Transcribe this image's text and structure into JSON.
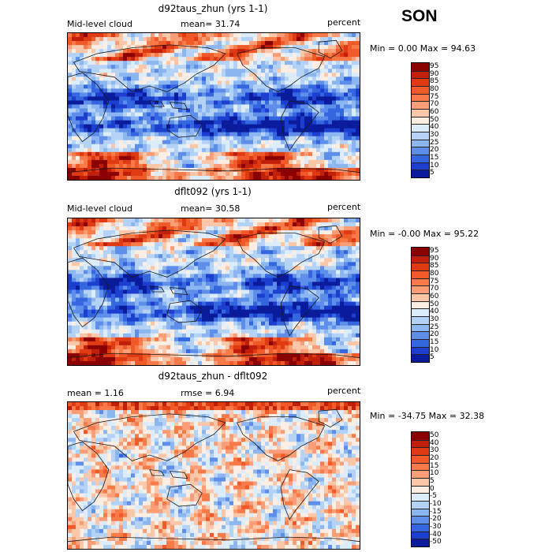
{
  "season": "SON",
  "panels": [
    {
      "title": "d92taus_zhun (yrs 1-1)",
      "left_label": "Mid-level cloud",
      "mid_label": "mean=  31.74",
      "right_label": "percent",
      "minmax": "Min =    0.00 Max =  94.63",
      "levels": [
        "95",
        "90",
        "85",
        "80",
        "75",
        "70",
        "60",
        "50",
        "40",
        "30",
        "25",
        "20",
        "15",
        "10",
        "5"
      ],
      "colors": [
        "#8b0000",
        "#c0200a",
        "#e03a12",
        "#f05a28",
        "#f77a48",
        "#fb9e78",
        "#fcc6a8",
        "#fdeee4",
        "#dcecfb",
        "#b4d2f6",
        "#8cb6f0",
        "#5e8eea",
        "#3466e0",
        "#1c3fd0",
        "#0a1c9c"
      ],
      "kind": "a"
    },
    {
      "title": "dflt092 (yrs 1-1)",
      "left_label": "Mid-level cloud",
      "mid_label": "mean=  30.58",
      "right_label": "percent",
      "minmax": "Min =   -0.00 Max =  95.22",
      "levels": [
        "95",
        "90",
        "85",
        "80",
        "75",
        "70",
        "60",
        "50",
        "40",
        "30",
        "25",
        "20",
        "15",
        "10",
        "5"
      ],
      "colors": [
        "#8b0000",
        "#c0200a",
        "#e03a12",
        "#f05a28",
        "#f77a48",
        "#fb9e78",
        "#fcc6a8",
        "#fdeee4",
        "#dcecfb",
        "#b4d2f6",
        "#8cb6f0",
        "#5e8eea",
        "#3466e0",
        "#1c3fd0",
        "#0a1c9c"
      ],
      "kind": "b"
    },
    {
      "title": "d92taus_zhun - dflt092",
      "left_label": "mean =    1.16",
      "mid_label": "rmse =    6.94",
      "right_label": "percent",
      "minmax": "Min = -34.75 Max =  32.38",
      "levels": [
        "50",
        "40",
        "30",
        "20",
        "15",
        "10",
        "5",
        "0",
        "-5",
        "-10",
        "-15",
        "-20",
        "-30",
        "-40",
        "-50"
      ],
      "colors": [
        "#8b0000",
        "#c0200a",
        "#e03a12",
        "#f05a28",
        "#f77a48",
        "#fb9e78",
        "#fcc6a8",
        "#fdeee4",
        "#dcecfb",
        "#b4d2f6",
        "#8cb6f0",
        "#5e8eea",
        "#3466e0",
        "#1c3fd0",
        "#0a1c9c"
      ],
      "kind": "d"
    }
  ]
}
